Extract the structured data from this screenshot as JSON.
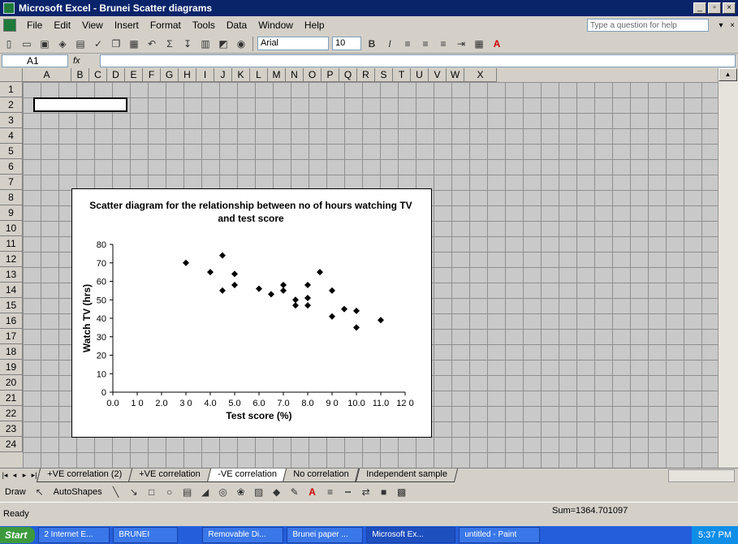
{
  "window": {
    "title": "Microsoft Excel - Brunei Scatter diagrams",
    "controls": [
      "_",
      "▫",
      "×"
    ]
  },
  "menubar": {
    "items": [
      "File",
      "Edit",
      "View",
      "Insert",
      "Format",
      "Tools",
      "Data",
      "Window",
      "Help"
    ],
    "help_placeholder": "Type a question for help"
  },
  "toolbar": {
    "font_name": "Arial",
    "font_size": "10",
    "bold": "B",
    "italic": "I",
    "sigma": "Σ"
  },
  "formula_bar": {
    "cell_ref": "A1",
    "fx": "fx"
  },
  "columns": [
    "A",
    "B",
    "C",
    "D",
    "E",
    "F",
    "G",
    "H",
    "I",
    "J",
    "K",
    "L",
    "M",
    "N",
    "O",
    "P",
    "Q",
    "R",
    "S",
    "T",
    "U",
    "V",
    "W",
    "X"
  ],
  "rows": [
    "1",
    "2",
    "3",
    "4",
    "5",
    "6",
    "7",
    "8",
    "9",
    "10",
    "11",
    "12",
    "13",
    "14",
    "15",
    "16",
    "17",
    "18",
    "19",
    "20",
    "21",
    "22",
    "23",
    "24"
  ],
  "sheet_tabs": [
    {
      "label": "+VE correlation (2)",
      "active": false
    },
    {
      "label": "+VE correlation",
      "active": false
    },
    {
      "label": "-VE correlation",
      "active": true
    },
    {
      "label": "No correlation",
      "active": false
    },
    {
      "label": "Independent sample",
      "active": false
    }
  ],
  "draw_toolbar": {
    "draw": "Draw",
    "autoshapes": "AutoShapes"
  },
  "status": {
    "ready": "Ready",
    "sum": "Sum=1364.701097"
  },
  "taskbar": {
    "start": "Start",
    "items": [
      "2 Internet E...",
      "BRUNEI",
      "Removable Di...",
      "Brunei paper ...",
      "Microsoft Ex...",
      "untitled - Paint"
    ],
    "clock": "5:37 PM"
  },
  "chart_data": {
    "type": "scatter",
    "title": "Scatter diagram for the relationship between no of hours watching TV and test score",
    "xlabel": "Test score (%)",
    "ylabel": "Watch TV (hrs)",
    "xlim": [
      0,
      120
    ],
    "ylim": [
      0,
      80
    ],
    "xticks": [
      "0.0",
      "1 0",
      "2.0",
      "3 0",
      "4.0",
      "5.0",
      "6.0",
      "7.0",
      "8.0",
      "9 0",
      "10.0",
      "11.0",
      "12 0"
    ],
    "yticks": [
      "0",
      "10",
      "20",
      "30",
      "40",
      "50",
      "60",
      "70",
      "80"
    ],
    "x": [
      30,
      40,
      45,
      45,
      50,
      50,
      60,
      65,
      70,
      70,
      75,
      75,
      80,
      80,
      80,
      85,
      90,
      90,
      95,
      100,
      100,
      110
    ],
    "y": [
      70,
      65,
      74,
      55,
      64,
      58,
      56,
      53,
      58,
      55,
      50,
      47,
      58,
      51,
      47,
      65,
      55,
      41,
      45,
      44,
      35,
      39
    ]
  }
}
